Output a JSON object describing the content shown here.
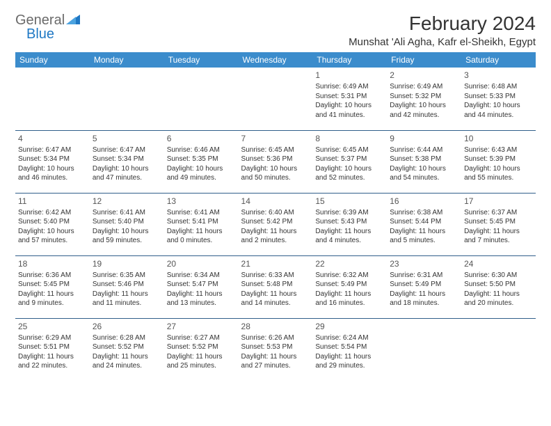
{
  "logo": {
    "text1": "General",
    "text2": "Blue"
  },
  "header": {
    "month_title": "February 2024",
    "location": "Munshat 'Ali Agha, Kafr el-Sheikh, Egypt"
  },
  "colors": {
    "header_bg": "#3b8ccc",
    "header_text": "#ffffff",
    "row_border": "#2f5e8a",
    "logo_gray": "#6a6a6a",
    "logo_blue": "#1f78c4"
  },
  "weekdays": [
    "Sunday",
    "Monday",
    "Tuesday",
    "Wednesday",
    "Thursday",
    "Friday",
    "Saturday"
  ],
  "weeks": [
    [
      null,
      null,
      null,
      null,
      {
        "n": "1",
        "sr": "Sunrise: 6:49 AM",
        "ss": "Sunset: 5:31 PM",
        "d1": "Daylight: 10 hours",
        "d2": "and 41 minutes."
      },
      {
        "n": "2",
        "sr": "Sunrise: 6:49 AM",
        "ss": "Sunset: 5:32 PM",
        "d1": "Daylight: 10 hours",
        "d2": "and 42 minutes."
      },
      {
        "n": "3",
        "sr": "Sunrise: 6:48 AM",
        "ss": "Sunset: 5:33 PM",
        "d1": "Daylight: 10 hours",
        "d2": "and 44 minutes."
      }
    ],
    [
      {
        "n": "4",
        "sr": "Sunrise: 6:47 AM",
        "ss": "Sunset: 5:34 PM",
        "d1": "Daylight: 10 hours",
        "d2": "and 46 minutes."
      },
      {
        "n": "5",
        "sr": "Sunrise: 6:47 AM",
        "ss": "Sunset: 5:34 PM",
        "d1": "Daylight: 10 hours",
        "d2": "and 47 minutes."
      },
      {
        "n": "6",
        "sr": "Sunrise: 6:46 AM",
        "ss": "Sunset: 5:35 PM",
        "d1": "Daylight: 10 hours",
        "d2": "and 49 minutes."
      },
      {
        "n": "7",
        "sr": "Sunrise: 6:45 AM",
        "ss": "Sunset: 5:36 PM",
        "d1": "Daylight: 10 hours",
        "d2": "and 50 minutes."
      },
      {
        "n": "8",
        "sr": "Sunrise: 6:45 AM",
        "ss": "Sunset: 5:37 PM",
        "d1": "Daylight: 10 hours",
        "d2": "and 52 minutes."
      },
      {
        "n": "9",
        "sr": "Sunrise: 6:44 AM",
        "ss": "Sunset: 5:38 PM",
        "d1": "Daylight: 10 hours",
        "d2": "and 54 minutes."
      },
      {
        "n": "10",
        "sr": "Sunrise: 6:43 AM",
        "ss": "Sunset: 5:39 PM",
        "d1": "Daylight: 10 hours",
        "d2": "and 55 minutes."
      }
    ],
    [
      {
        "n": "11",
        "sr": "Sunrise: 6:42 AM",
        "ss": "Sunset: 5:40 PM",
        "d1": "Daylight: 10 hours",
        "d2": "and 57 minutes."
      },
      {
        "n": "12",
        "sr": "Sunrise: 6:41 AM",
        "ss": "Sunset: 5:40 PM",
        "d1": "Daylight: 10 hours",
        "d2": "and 59 minutes."
      },
      {
        "n": "13",
        "sr": "Sunrise: 6:41 AM",
        "ss": "Sunset: 5:41 PM",
        "d1": "Daylight: 11 hours",
        "d2": "and 0 minutes."
      },
      {
        "n": "14",
        "sr": "Sunrise: 6:40 AM",
        "ss": "Sunset: 5:42 PM",
        "d1": "Daylight: 11 hours",
        "d2": "and 2 minutes."
      },
      {
        "n": "15",
        "sr": "Sunrise: 6:39 AM",
        "ss": "Sunset: 5:43 PM",
        "d1": "Daylight: 11 hours",
        "d2": "and 4 minutes."
      },
      {
        "n": "16",
        "sr": "Sunrise: 6:38 AM",
        "ss": "Sunset: 5:44 PM",
        "d1": "Daylight: 11 hours",
        "d2": "and 5 minutes."
      },
      {
        "n": "17",
        "sr": "Sunrise: 6:37 AM",
        "ss": "Sunset: 5:45 PM",
        "d1": "Daylight: 11 hours",
        "d2": "and 7 minutes."
      }
    ],
    [
      {
        "n": "18",
        "sr": "Sunrise: 6:36 AM",
        "ss": "Sunset: 5:45 PM",
        "d1": "Daylight: 11 hours",
        "d2": "and 9 minutes."
      },
      {
        "n": "19",
        "sr": "Sunrise: 6:35 AM",
        "ss": "Sunset: 5:46 PM",
        "d1": "Daylight: 11 hours",
        "d2": "and 11 minutes."
      },
      {
        "n": "20",
        "sr": "Sunrise: 6:34 AM",
        "ss": "Sunset: 5:47 PM",
        "d1": "Daylight: 11 hours",
        "d2": "and 13 minutes."
      },
      {
        "n": "21",
        "sr": "Sunrise: 6:33 AM",
        "ss": "Sunset: 5:48 PM",
        "d1": "Daylight: 11 hours",
        "d2": "and 14 minutes."
      },
      {
        "n": "22",
        "sr": "Sunrise: 6:32 AM",
        "ss": "Sunset: 5:49 PM",
        "d1": "Daylight: 11 hours",
        "d2": "and 16 minutes."
      },
      {
        "n": "23",
        "sr": "Sunrise: 6:31 AM",
        "ss": "Sunset: 5:49 PM",
        "d1": "Daylight: 11 hours",
        "d2": "and 18 minutes."
      },
      {
        "n": "24",
        "sr": "Sunrise: 6:30 AM",
        "ss": "Sunset: 5:50 PM",
        "d1": "Daylight: 11 hours",
        "d2": "and 20 minutes."
      }
    ],
    [
      {
        "n": "25",
        "sr": "Sunrise: 6:29 AM",
        "ss": "Sunset: 5:51 PM",
        "d1": "Daylight: 11 hours",
        "d2": "and 22 minutes."
      },
      {
        "n": "26",
        "sr": "Sunrise: 6:28 AM",
        "ss": "Sunset: 5:52 PM",
        "d1": "Daylight: 11 hours",
        "d2": "and 24 minutes."
      },
      {
        "n": "27",
        "sr": "Sunrise: 6:27 AM",
        "ss": "Sunset: 5:52 PM",
        "d1": "Daylight: 11 hours",
        "d2": "and 25 minutes."
      },
      {
        "n": "28",
        "sr": "Sunrise: 6:26 AM",
        "ss": "Sunset: 5:53 PM",
        "d1": "Daylight: 11 hours",
        "d2": "and 27 minutes."
      },
      {
        "n": "29",
        "sr": "Sunrise: 6:24 AM",
        "ss": "Sunset: 5:54 PM",
        "d1": "Daylight: 11 hours",
        "d2": "and 29 minutes."
      },
      null,
      null
    ]
  ]
}
